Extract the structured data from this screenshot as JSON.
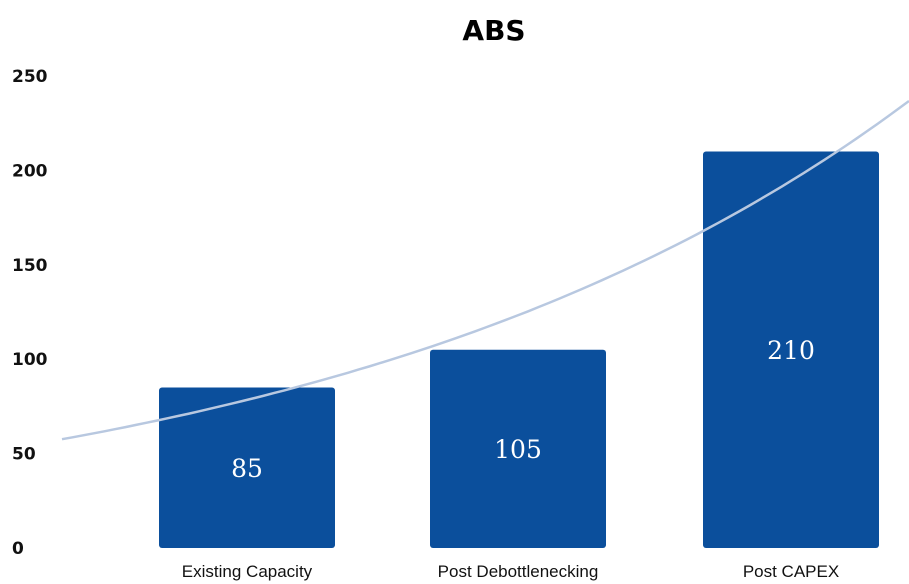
{
  "chart_data": {
    "type": "bar",
    "title": "ABS",
    "xlabel": "",
    "ylabel": "",
    "categories": [
      "Existing Capacity",
      "Post Debottlenecking",
      "Post CAPEX"
    ],
    "values": [
      85,
      105,
      210
    ],
    "ylim": [
      0,
      250
    ],
    "yticks": [
      0,
      50,
      100,
      150,
      200,
      250
    ],
    "grid": false,
    "bar_color": "#0b4f9c",
    "trendline": {
      "type": "exponential",
      "color": "#b8c8e0"
    }
  }
}
